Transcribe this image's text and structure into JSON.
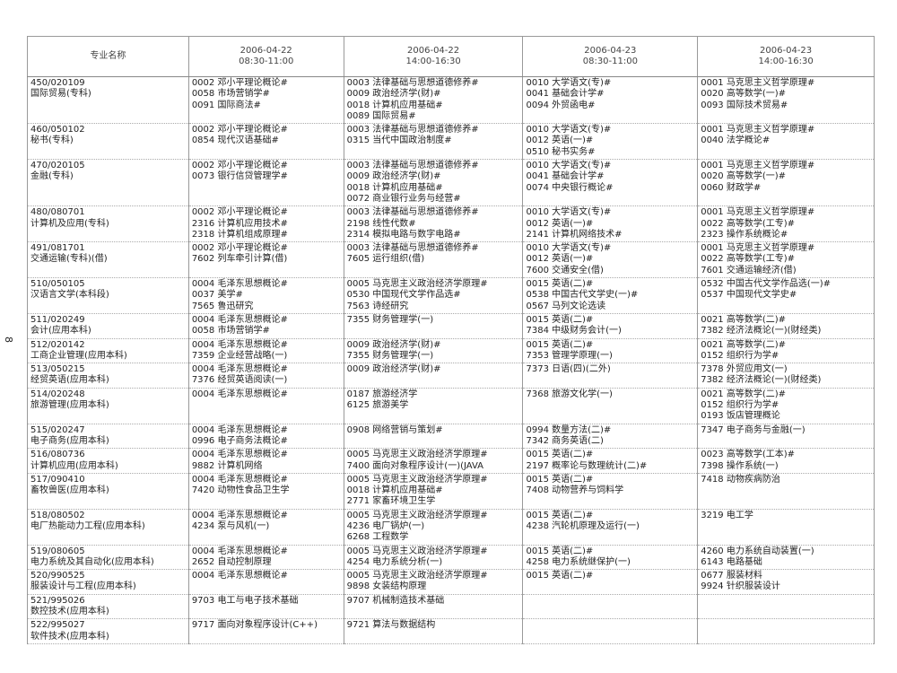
{
  "page_number": "8",
  "header": {
    "major": "专业名称",
    "sessions": [
      {
        "date": "2006-04-22",
        "time": "08:30-11:00"
      },
      {
        "date": "2006-04-22",
        "time": "14:00-16:30"
      },
      {
        "date": "2006-04-23",
        "time": "08:30-11:00"
      },
      {
        "date": "2006-04-23",
        "time": "14:00-16:30"
      }
    ]
  },
  "rows": [
    {
      "code": "450/020109",
      "name": "国际贸易(专科)",
      "cells": [
        [
          "0002 邓小平理论概论#",
          "0058 市场营销学#",
          "0091 国际商法#"
        ],
        [
          "0003 法律基础与思想道德修养#",
          "0009 政治经济学(财)#",
          "0018 计算机应用基础#",
          "0089 国际贸易#"
        ],
        [
          "0010 大学语文(专)#",
          "0041 基础会计学#",
          "0094 外贸函电#"
        ],
        [
          "0001 马克思主义哲学原理#",
          "0020 高等数学(一)#",
          "0093 国际技术贸易#"
        ]
      ]
    },
    {
      "code": "460/050102",
      "name": "秘书(专科)",
      "cells": [
        [
          "0002 邓小平理论概论#",
          "0854 现代汉语基础#"
        ],
        [
          "0003 法律基础与思想道德修养#",
          "0315 当代中国政治制度#"
        ],
        [
          "0010 大学语文(专)#",
          "0012 英语(一)#",
          "0510 秘书实务#"
        ],
        [
          "0001 马克思主义哲学原理#",
          "0040 法学概论#"
        ]
      ]
    },
    {
      "code": "470/020105",
      "name": "金融(专科)",
      "cells": [
        [
          "0002 邓小平理论概论#",
          "0073 银行信贷管理学#"
        ],
        [
          "0003 法律基础与思想道德修养#",
          "0009 政治经济学(财)#",
          "0018 计算机应用基础#",
          "0072 商业银行业务与经营#"
        ],
        [
          "0010 大学语文(专)#",
          "0041 基础会计学#",
          "0074 中央银行概论#"
        ],
        [
          "0001 马克思主义哲学原理#",
          "0020 高等数学(一)#",
          "0060 财政学#"
        ]
      ]
    },
    {
      "code": "480/080701",
      "name": "计算机及应用(专科)",
      "cells": [
        [
          "0002 邓小平理论概论#",
          "2316 计算机应用技术#",
          "2318 计算机组成原理#"
        ],
        [
          "0003 法律基础与思想道德修养#",
          "2198 线性代数#",
          "2314 模拟电路与数字电路#"
        ],
        [
          "0010 大学语文(专)#",
          "0012 英语(一)#",
          "2141 计算机网络技术#"
        ],
        [
          "0001 马克思主义哲学原理#",
          "0022 高等数学(工专)#",
          "2323 操作系统概论#"
        ]
      ]
    },
    {
      "code": "491/081701",
      "name": "交通运输(专科)(借)",
      "cells": [
        [
          "0002 邓小平理论概论#",
          "7602 列车牵引计算(借)"
        ],
        [
          "0003 法律基础与思想道德修养#",
          "7605 运行组织(借)"
        ],
        [
          "0010 大学语文(专)#",
          "0012 英语(一)#",
          "7600 交通安全(借)"
        ],
        [
          "0001 马克思主义哲学原理#",
          "0022 高等数学(工专)#",
          "7601 交通运输经济(借)"
        ]
      ]
    },
    {
      "code": "510/050105",
      "name": "汉语言文学(本科段)",
      "cells": [
        [
          "0004 毛泽东思想概论#",
          "0037 美学#",
          "7565 鲁迅研究"
        ],
        [
          "0005 马克思主义政治经济学原理#",
          "0530 中国现代文学作品选#",
          "7563 诗经研究"
        ],
        [
          "0015 英语(二)#",
          "0538 中国古代文学史(一)#",
          "0567 马列文论选读"
        ],
        [
          "0532 中国古代文学作品选(一)#",
          "0537 中国现代文学史#"
        ]
      ]
    },
    {
      "code": "511/020249",
      "name": "会计(应用本科)",
      "cells": [
        [
          "0004 毛泽东思想概论#",
          "0058 市场营销学#"
        ],
        [
          "7355 财务管理学(一)"
        ],
        [
          "0015 英语(二)#",
          "7384 中级财务会计(一)"
        ],
        [
          "0021 高等数学(二)#",
          "7382 经济法概论(一)(财经类)"
        ]
      ]
    },
    {
      "code": "512/020142",
      "name": "工商企业管理(应用本科)",
      "cells": [
        [
          "0004 毛泽东思想概论#",
          "7359 企业经营战略(一)"
        ],
        [
          "0009 政治经济学(财)#",
          "7355 财务管理学(一)"
        ],
        [
          "0015 英语(二)#",
          "7353 管理学原理(一)"
        ],
        [
          "0021 高等数学(二)#",
          "0152 组织行为学#"
        ]
      ]
    },
    {
      "code": "513/050215",
      "name": "经贸英语(应用本科)",
      "cells": [
        [
          "0004 毛泽东思想概论#",
          "7376 经贸英语阅读(一)"
        ],
        [
          "0009 政治经济学(财)#"
        ],
        [
          "7373 日语(四)(二外)"
        ],
        [
          "7378 外贸应用文(一)",
          "7382 经济法概论(一)(财经类)"
        ]
      ]
    },
    {
      "code": "514/020248",
      "name": "旅游管理(应用本科)",
      "cells": [
        [
          "0004 毛泽东思想概论#"
        ],
        [
          "0187 旅游经济学",
          "6125 旅游美学"
        ],
        [
          "7368 旅游文化学(一)"
        ],
        [
          "0021 高等数学(二)#",
          "0152 组织行为学#",
          "0193 饭店管理概论"
        ]
      ]
    },
    {
      "code": "515/020247",
      "name": "电子商务(应用本科)",
      "cells": [
        [
          "0004 毛泽东思想概论#",
          "0996 电子商务法概论#"
        ],
        [
          "0908 网络营销与策划#"
        ],
        [
          "0994 数量方法(二)#",
          "7342 商务英语(二)"
        ],
        [
          "7347 电子商务与金融(一)"
        ]
      ]
    },
    {
      "code": "516/080736",
      "name": "计算机应用(应用本科)",
      "cells": [
        [
          "0004 毛泽东思想概论#",
          "9882 计算机网络"
        ],
        [
          "0005 马克思主义政治经济学原理#",
          "7400 面向对象程序设计(一)(JAVA"
        ],
        [
          "0015 英语(二)#",
          "2197 概率论与数理统计(二)#"
        ],
        [
          "0023 高等数学(工本)#",
          "7398 操作系统(一)"
        ]
      ]
    },
    {
      "code": "517/090410",
      "name": "畜牧兽医(应用本科)",
      "cells": [
        [
          "0004 毛泽东思想概论#",
          "7420 动物性食品卫生学"
        ],
        [
          "0005 马克思主义政治经济学原理#",
          "0018 计算机应用基础#",
          "2771 家畜环境卫生学"
        ],
        [
          "0015 英语(二)#",
          "7408 动物营养与饲料学"
        ],
        [
          "7418 动物疾病防治"
        ]
      ]
    },
    {
      "code": "518/080502",
      "name": "电厂热能动力工程(应用本科)",
      "cells": [
        [
          "0004 毛泽东思想概论#",
          "4234 泵与风机(一)"
        ],
        [
          "0005 马克思主义政治经济学原理#",
          "4236 电厂锅炉(一)",
          "6268 工程数学"
        ],
        [
          "0015 英语(二)#",
          "4238 汽轮机原理及运行(一)"
        ],
        [
          "3219 电工学"
        ]
      ]
    },
    {
      "code": "519/080605",
      "name": "电力系统及其自动化(应用本科)",
      "cells": [
        [
          "0004 毛泽东思想概论#",
          "2652 自动控制原理"
        ],
        [
          "0005 马克思主义政治经济学原理#",
          "4254 电力系统分析(一)"
        ],
        [
          "0015 英语(二)#",
          "4258 电力系统继保护(一)"
        ],
        [
          "4260 电力系统自动装置(一)",
          "6143 电路基础"
        ]
      ]
    },
    {
      "code": "520/990525",
      "name": "服装设计与工程(应用本科)",
      "cells": [
        [
          "0004 毛泽东思想概论#"
        ],
        [
          "0005 马克思主义政治经济学原理#",
          "9898 女装结构原理"
        ],
        [
          "0015 英语(二)#"
        ],
        [
          "0677 服装材料",
          "9924 针织服装设计"
        ]
      ]
    },
    {
      "code": "521/995026",
      "name": "数控技术(应用本科)",
      "cells": [
        [
          "9703 电工与电子技术基础"
        ],
        [
          "9707 机械制造技术基础"
        ],
        [],
        []
      ]
    },
    {
      "code": "522/995027",
      "name": "软件技术(应用本科)",
      "cells": [
        [
          "9717 面向对象程序设计(C++)"
        ],
        [
          "9721 算法与数据结构"
        ],
        [],
        []
      ]
    }
  ]
}
